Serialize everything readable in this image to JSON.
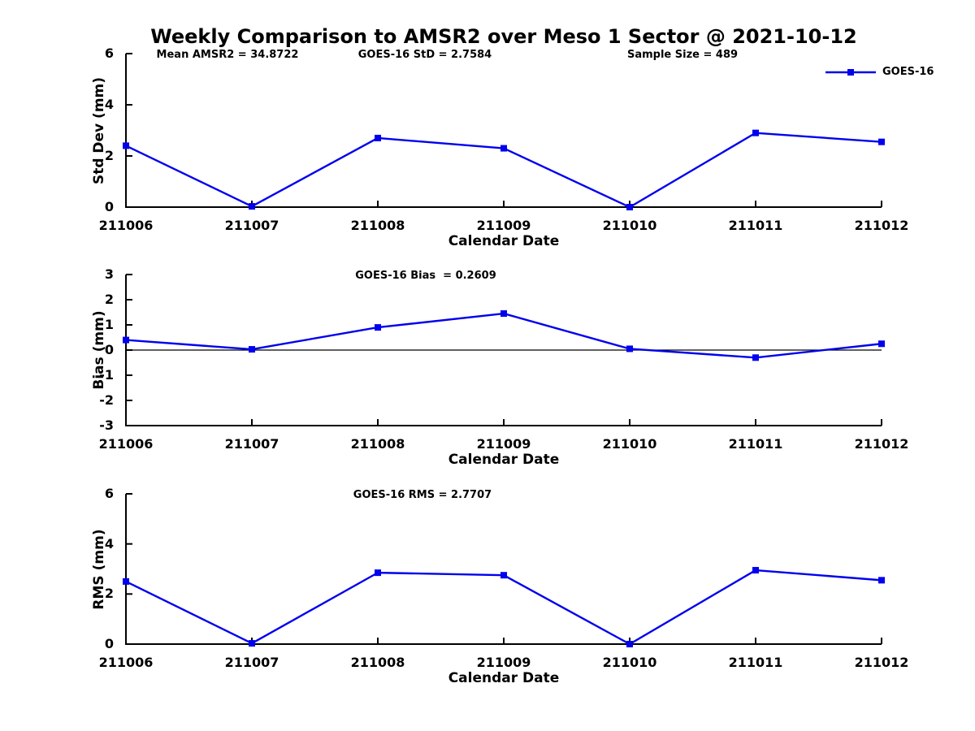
{
  "title": "Weekly Comparison to AMSR2 over Meso 1 Sector @ 2021-10-12",
  "legend": {
    "label": "GOES-16",
    "color": "#0000EE"
  },
  "colors": {
    "line": "#0000EE",
    "axis": "#000000",
    "background": "#FFFFFF"
  },
  "chart_data": [
    {
      "type": "line",
      "id": "std-dev",
      "annotations": [
        "Mean AMSR2 = 34.8722",
        "GOES-16 StD = 2.7584",
        "Sample Size = 489"
      ],
      "ylabel": "Std Dev (mm)",
      "xlabel": "Calendar Date",
      "categories": [
        "211006",
        "211007",
        "211008",
        "211009",
        "211010",
        "211011",
        "211012"
      ],
      "yticks": [
        0,
        2,
        4,
        6
      ],
      "ylim": [
        0,
        6
      ],
      "zero_line": false,
      "legend_position": "top-right",
      "grid": false,
      "series": [
        {
          "name": "GOES-16",
          "values": [
            2.4,
            0.03,
            2.7,
            2.3,
            0.0,
            2.9,
            2.55
          ]
        }
      ]
    },
    {
      "type": "line",
      "id": "bias",
      "annotations": [
        "GOES-16 Bias  = 0.2609"
      ],
      "ylabel": "Bias (mm)",
      "xlabel": "Calendar Date",
      "categories": [
        "211006",
        "211007",
        "211008",
        "211009",
        "211010",
        "211011",
        "211012"
      ],
      "yticks": [
        3,
        2,
        1,
        0,
        -1,
        -2,
        -3
      ],
      "ylim": [
        -3,
        3
      ],
      "zero_line": true,
      "grid": false,
      "series": [
        {
          "name": "GOES-16",
          "values": [
            0.4,
            0.03,
            0.9,
            1.45,
            0.05,
            -0.3,
            0.25
          ]
        }
      ]
    },
    {
      "type": "line",
      "id": "rms",
      "annotations": [
        "GOES-16 RMS = 2.7707"
      ],
      "ylabel": "RMS (mm)",
      "xlabel": "Calendar Date",
      "categories": [
        "211006",
        "211007",
        "211008",
        "211009",
        "211010",
        "211011",
        "211012"
      ],
      "yticks": [
        0,
        2,
        4,
        6
      ],
      "ylim": [
        0,
        6
      ],
      "zero_line": false,
      "grid": false,
      "series": [
        {
          "name": "GOES-16",
          "values": [
            2.5,
            0.03,
            2.85,
            2.75,
            0.0,
            2.95,
            2.55
          ]
        }
      ]
    }
  ]
}
